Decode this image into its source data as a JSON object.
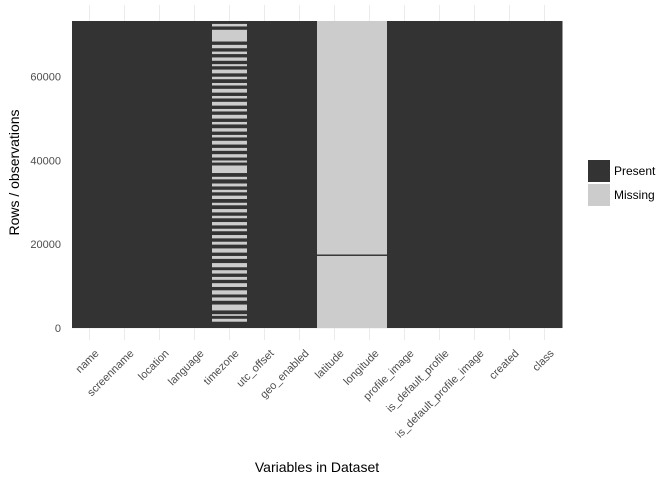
{
  "chart_data": {
    "type": "heatmap",
    "title": "",
    "xlabel": "Variables in Dataset",
    "ylabel": "Rows / observations",
    "categories": [
      "name",
      "screenname",
      "location",
      "language",
      "timezone",
      "utc_offset",
      "geo_enabled",
      "latitude",
      "longitude",
      "profile_image",
      "is_default_profile",
      "is_default_profile_image",
      "created",
      "class"
    ],
    "y_ticks": [
      0,
      20000,
      40000,
      60000
    ],
    "ylim": [
      0,
      73300
    ],
    "n_rows": 73300,
    "grid": true,
    "legend": {
      "position": "right",
      "entries": [
        {
          "label": "Present",
          "color": "#333333"
        },
        {
          "label": "Missing",
          "color": "#cccccc"
        }
      ]
    },
    "present_color": "#333333",
    "missing_color": "#cccccc",
    "missing_ranges": {
      "timezone": [
        [
          1500,
          2200
        ],
        [
          2900,
          3300
        ],
        [
          4200,
          5600
        ],
        [
          6500,
          7300
        ],
        [
          8000,
          9000
        ],
        [
          9800,
          10700
        ],
        [
          11500,
          12200
        ],
        [
          13000,
          13800
        ],
        [
          14500,
          15500
        ],
        [
          16500,
          17200
        ],
        [
          18000,
          19000
        ],
        [
          19900,
          20600
        ],
        [
          21400,
          22200
        ],
        [
          23100,
          23700
        ],
        [
          24500,
          25300
        ],
        [
          26200,
          26800
        ],
        [
          27600,
          28400
        ],
        [
          29300,
          29900
        ],
        [
          30800,
          31600
        ],
        [
          32400,
          33000
        ],
        [
          33800,
          34500
        ],
        [
          35500,
          36100
        ],
        [
          37000,
          38800
        ],
        [
          39500,
          40000
        ],
        [
          40700,
          41500
        ],
        [
          42300,
          43000
        ],
        [
          43800,
          44700
        ],
        [
          45500,
          46100
        ],
        [
          46900,
          47700
        ],
        [
          48600,
          49200
        ],
        [
          50000,
          50900
        ],
        [
          51700,
          52300
        ],
        [
          53100,
          54000
        ],
        [
          54800,
          55400
        ],
        [
          56200,
          57100
        ],
        [
          57900,
          58500
        ],
        [
          59400,
          60000
        ],
        [
          60800,
          61700
        ],
        [
          62500,
          63000
        ],
        [
          63800,
          64600
        ],
        [
          65400,
          66000
        ],
        [
          66800,
          67600
        ],
        [
          68400,
          71200
        ],
        [
          72000,
          72600
        ]
      ],
      "latitude": [
        [
          0,
          17200
        ],
        [
          17550,
          73300
        ]
      ],
      "longitude": [
        [
          0,
          17200
        ],
        [
          17550,
          73300
        ]
      ]
    }
  }
}
